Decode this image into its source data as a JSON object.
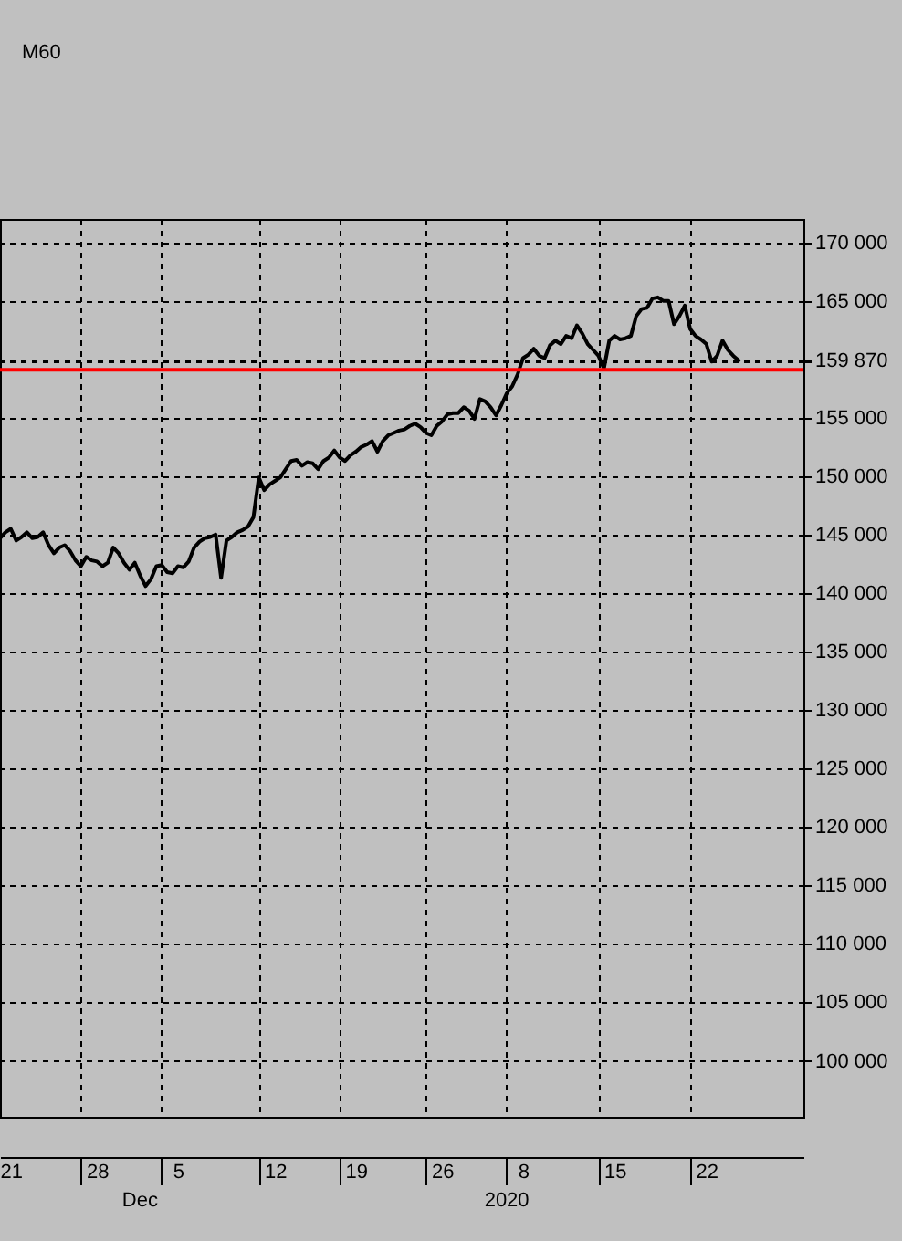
{
  "chart_data": {
    "type": "line",
    "categories": [
      null,
      null,
      "21",
      null,
      null,
      null,
      null,
      null,
      null,
      null,
      null,
      null,
      null,
      null,
      null,
      null,
      null,
      null,
      "28",
      null,
      null,
      null,
      null,
      null,
      null,
      null,
      null,
      null,
      null,
      null,
      null,
      null,
      null,
      "5",
      null,
      null,
      null,
      null,
      null,
      null,
      null,
      null,
      null,
      null,
      null,
      null,
      null,
      null,
      null,
      null,
      null,
      "12",
      null,
      null,
      null,
      null,
      null,
      null,
      null,
      null,
      null,
      null,
      null,
      null,
      null,
      null,
      "19",
      null,
      null,
      null,
      null,
      null,
      null,
      null,
      null,
      null,
      null,
      null,
      null,
      null,
      null,
      null,
      "26",
      null,
      null,
      null,
      null,
      null,
      null,
      null,
      null,
      null,
      null,
      null,
      null,
      null,
      null,
      "8",
      null,
      null,
      null,
      null,
      null,
      null,
      null,
      null,
      null,
      null,
      null,
      null,
      null,
      null,
      null,
      null,
      "15",
      null,
      null,
      null,
      null,
      null,
      null,
      null,
      null,
      null,
      null,
      null,
      null,
      null,
      null,
      null,
      null,
      "22",
      null,
      null,
      null,
      null,
      null,
      null,
      null,
      null,
      null,
      null,
      null,
      null,
      null,
      null,
      null,
      null,
      null,
      null
    ],
    "series": [
      {
        "color": "#000000",
        "values": [
          144700,
          145200,
          145500,
          144500,
          144800,
          145200,
          144700,
          144800,
          145200,
          144100,
          143400,
          143900,
          144100,
          143600,
          142800,
          142300,
          143100,
          142800,
          142700,
          142300,
          142600,
          143900,
          143400,
          142600,
          142000,
          142600,
          141500,
          140600,
          141200,
          142300,
          142400,
          141800,
          141700,
          142300,
          142200,
          142700,
          143900,
          144400,
          144700,
          144800,
          145000,
          141300,
          144500,
          144800,
          145200,
          145400,
          145700,
          146500,
          149900,
          148800,
          149300,
          149600,
          149900,
          150600,
          151300,
          151400,
          150900,
          151200,
          151100,
          150600,
          151300,
          151600,
          152200,
          151600,
          151300,
          151800,
          152100,
          152500,
          152700,
          153000,
          152100,
          153000,
          153500,
          153700,
          153900,
          154000,
          154300,
          154500,
          154200,
          153700,
          153500,
          154300,
          154700,
          155300,
          155400,
          155400,
          155900,
          155600,
          154900,
          156600,
          156400,
          155900,
          155200,
          156100,
          157100,
          157700,
          158700,
          160100,
          160400,
          160900,
          160300,
          160100,
          161200,
          161600,
          161300,
          162000,
          161800,
          162900,
          162200,
          161300,
          160800,
          160300,
          159200,
          161600,
          162000,
          161700,
          161800,
          162000,
          163700,
          164300,
          164400,
          165200,
          165300,
          165000,
          165000,
          163000,
          163700,
          164600,
          162600,
          162000,
          161700,
          161300,
          159800,
          160300,
          161600,
          160800,
          160300,
          159900,
          null,
          null,
          null,
          null,
          null,
          null,
          null,
          null,
          null,
          null,
          null,
          null
        ]
      }
    ],
    "ylim": [
      95200,
      172000
    ],
    "yticks": [
      {
        "value": 100000,
        "label": "100 000"
      },
      {
        "value": 105000,
        "label": "105 000"
      },
      {
        "value": 110000,
        "label": "110 000"
      },
      {
        "value": 115000,
        "label": "115 000"
      },
      {
        "value": 120000,
        "label": "120 000"
      },
      {
        "value": 125000,
        "label": "125 000"
      },
      {
        "value": 130000,
        "label": "130 000"
      },
      {
        "value": 135000,
        "label": "135 000"
      },
      {
        "value": 140000,
        "label": "140 000"
      },
      {
        "value": 145000,
        "label": "145 000"
      },
      {
        "value": 150000,
        "label": "150 000"
      },
      {
        "value": 155000,
        "label": "155 000"
      },
      {
        "value": 159870,
        "label": "159 870"
      },
      {
        "value": 160000,
        "label": null
      },
      {
        "value": 165000,
        "label": "165 000"
      },
      {
        "value": 170000,
        "label": "170 000"
      }
    ],
    "grid": true,
    "ref_lines": [
      {
        "axis": "y",
        "value": 159100,
        "color": "#ff0000"
      }
    ],
    "annotations": [
      "Dec",
      "2020",
      "M60"
    ]
  }
}
